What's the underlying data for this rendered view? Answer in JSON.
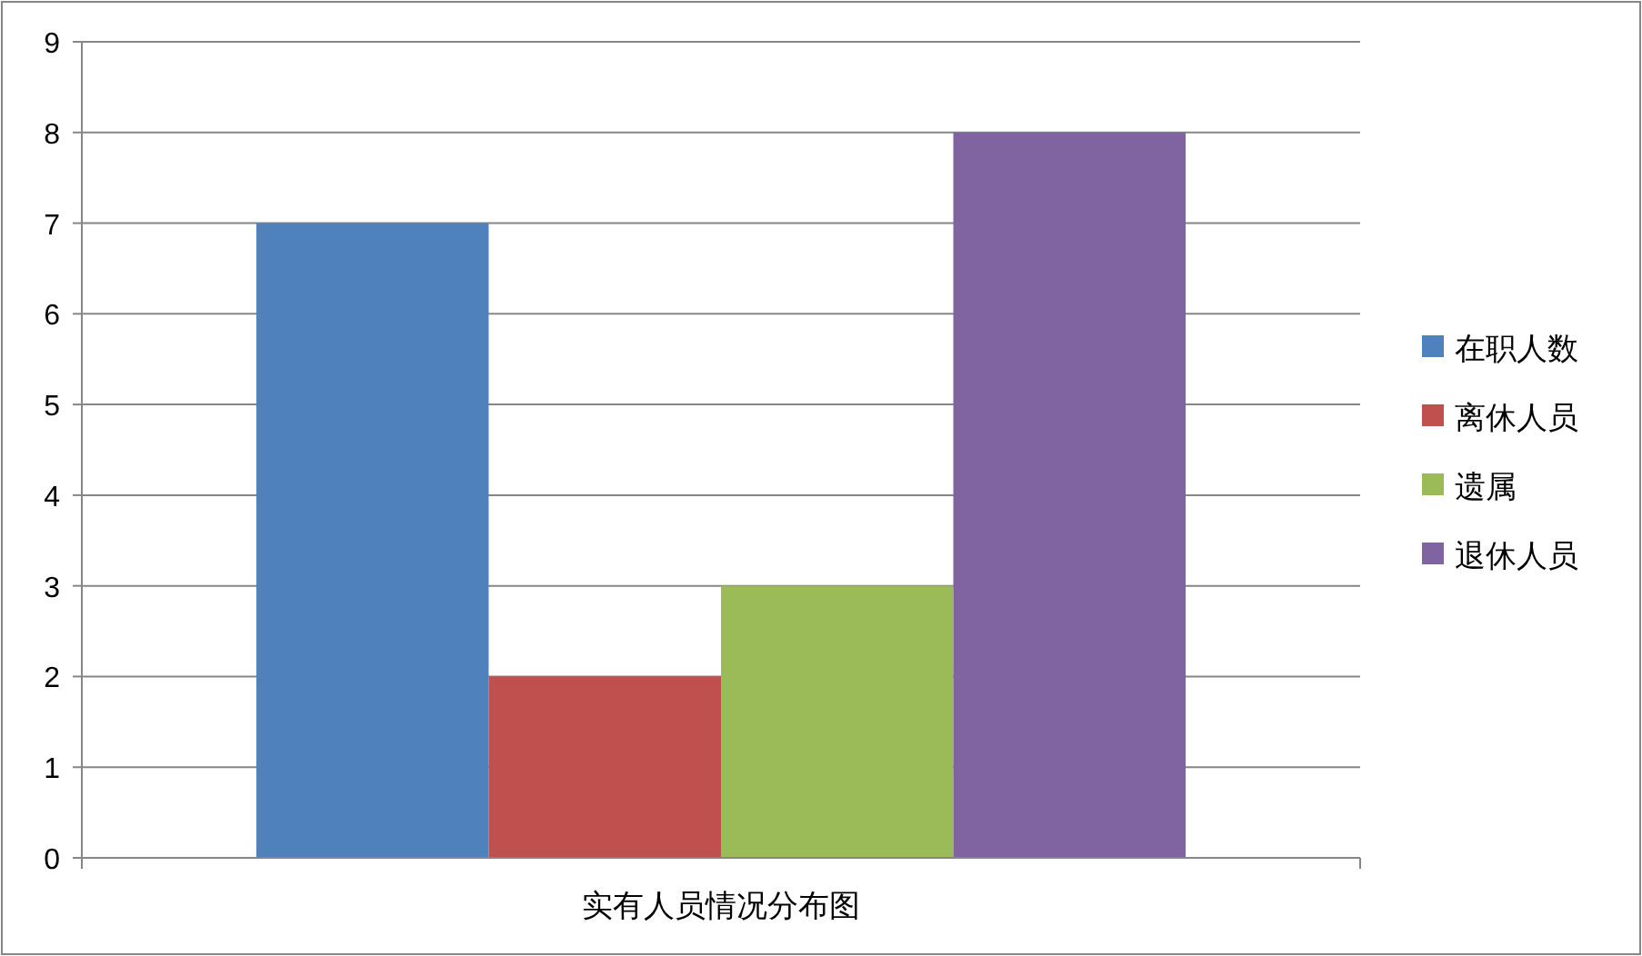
{
  "chart_data": {
    "type": "bar",
    "categories": [
      "实有人员情况分布图"
    ],
    "series": [
      {
        "name": "在职人数",
        "color": "#4f81bd",
        "values": [
          7
        ]
      },
      {
        "name": "离休人员",
        "color": "#c0504d",
        "values": [
          2
        ]
      },
      {
        "name": "遗属",
        "color": "#9bbb59",
        "values": [
          3
        ]
      },
      {
        "name": "退休人员",
        "color": "#8064a2",
        "values": [
          8
        ]
      }
    ],
    "ylim": [
      0,
      9
    ],
    "yticks": [
      0,
      1,
      2,
      3,
      4,
      5,
      6,
      7,
      8,
      9
    ],
    "grid": "y",
    "legend": "right"
  }
}
